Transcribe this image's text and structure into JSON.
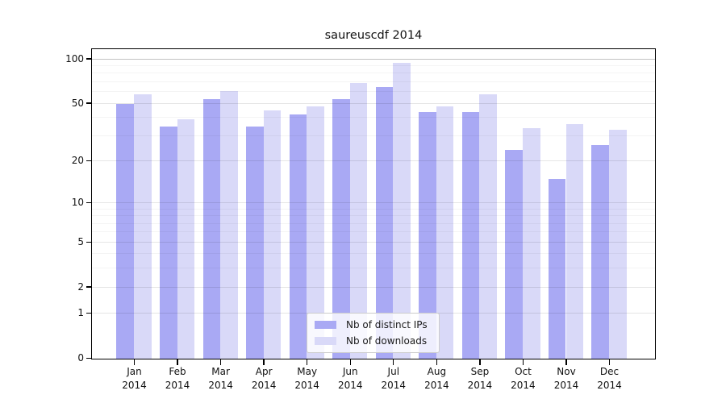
{
  "chart_data": {
    "type": "bar",
    "title": "saureuscdf 2014",
    "categories": [
      "Jan 2014",
      "Feb 2014",
      "Mar 2014",
      "Apr 2014",
      "May 2014",
      "Jun 2014",
      "Jul 2014",
      "Aug 2014",
      "Sep 2014",
      "Oct 2014",
      "Nov 2014",
      "Dec 2014"
    ],
    "series": [
      {
        "name": "Nb of distinct IPs",
        "color": "#a9a9f4",
        "values": [
          50,
          35,
          54,
          35,
          42,
          54,
          65,
          44,
          44,
          24,
          15,
          26
        ]
      },
      {
        "name": "Nb of downloads",
        "color": "#d9d9f8",
        "values": [
          58,
          39,
          61,
          45,
          48,
          69,
          95,
          48,
          58,
          34,
          36,
          33
        ]
      }
    ],
    "xlabel": "",
    "ylabel": "",
    "yscale": "log1p",
    "ylim": [
      0,
      117
    ],
    "yticks": [
      0,
      1,
      2,
      5,
      10,
      20,
      50,
      100
    ],
    "yticks_minor": [
      3,
      4,
      6,
      7,
      8,
      9,
      30,
      40,
      60,
      70,
      80,
      90
    ],
    "grid": true,
    "legend_position": "lower center"
  }
}
